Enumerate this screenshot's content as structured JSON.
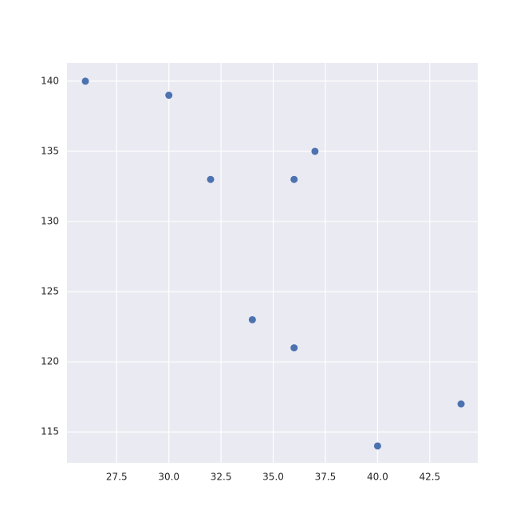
{
  "chart_data": {
    "type": "scatter",
    "x": [
      26,
      30,
      32,
      36,
      37,
      34,
      36,
      40,
      44
    ],
    "values": [
      140,
      139,
      133,
      133,
      135,
      123,
      121,
      114,
      117
    ],
    "color": "#4c72b0",
    "xlim": [
      25.12,
      44.8
    ],
    "ylim": [
      112.8,
      141.3
    ],
    "xticks": [
      27.5,
      {
        "value": 30,
        "label": "30.0"
      },
      32.5,
      {
        "value": 35,
        "label": "35.0"
      },
      37.5,
      {
        "value": 40,
        "label": "40.0"
      },
      42.5
    ],
    "yticks": [
      115,
      120,
      125,
      130,
      135,
      140
    ],
    "grid": true
  }
}
